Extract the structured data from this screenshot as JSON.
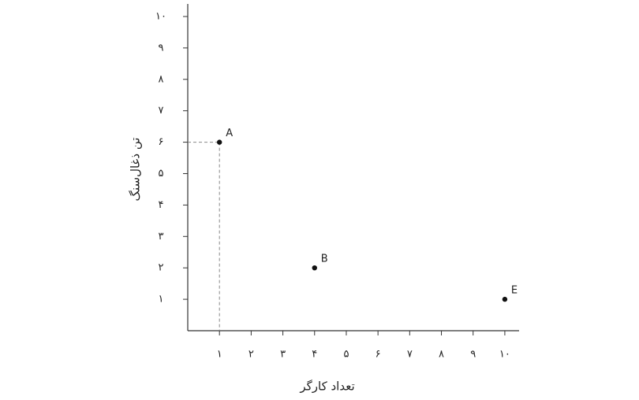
{
  "chart_data": {
    "type": "scatter",
    "x_label": "تعداد کارگر",
    "y_label": "تن ذغال‌سنگ",
    "x": [
      1,
      4,
      10
    ],
    "values": [
      6,
      2,
      1
    ],
    "point_labels": [
      "A",
      "B",
      "E"
    ],
    "drop_lines": [
      true,
      false,
      false
    ],
    "color": "#111111",
    "xlim": [
      0,
      10.45
    ],
    "ylim": [
      0,
      10.4
    ],
    "xticks": [
      {
        "value": 1,
        "label": "۱"
      },
      {
        "value": 2,
        "label": "۲"
      },
      {
        "value": 3,
        "label": "۳"
      },
      {
        "value": 4,
        "label": "۴"
      },
      {
        "value": 5,
        "label": "۵"
      },
      {
        "value": 6,
        "label": "۶"
      },
      {
        "value": 7,
        "label": "۷"
      },
      {
        "value": 8,
        "label": "۸"
      },
      {
        "value": 9,
        "label": "۹"
      },
      {
        "value": 10,
        "label": "۱۰"
      }
    ],
    "yticks": [
      {
        "value": 1,
        "label": "۱"
      },
      {
        "value": 2,
        "label": "۲"
      },
      {
        "value": 3,
        "label": "۳"
      },
      {
        "value": 4,
        "label": "۴"
      },
      {
        "value": 5,
        "label": "۵"
      },
      {
        "value": 6,
        "label": "۶"
      },
      {
        "value": 7,
        "label": "۷"
      },
      {
        "value": 8,
        "label": "۸"
      },
      {
        "value": 9,
        "label": "۹"
      },
      {
        "value": 10,
        "label": "۱۰"
      }
    ]
  }
}
